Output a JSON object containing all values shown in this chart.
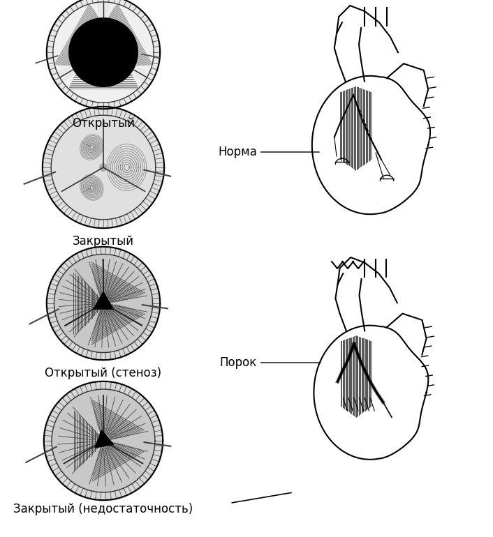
{
  "background_color": "#ffffff",
  "labels": {
    "open": "Открытый",
    "closed": "Закрытый",
    "open_stenosis": "Открытый (стеноз)",
    "closed_insufficiency": "Закрытый (недостаточность)",
    "norma": "Норма",
    "porok": "Порок"
  },
  "fig_width": 7.06,
  "fig_height": 7.7,
  "dpi": 100,
  "font_size": 12
}
